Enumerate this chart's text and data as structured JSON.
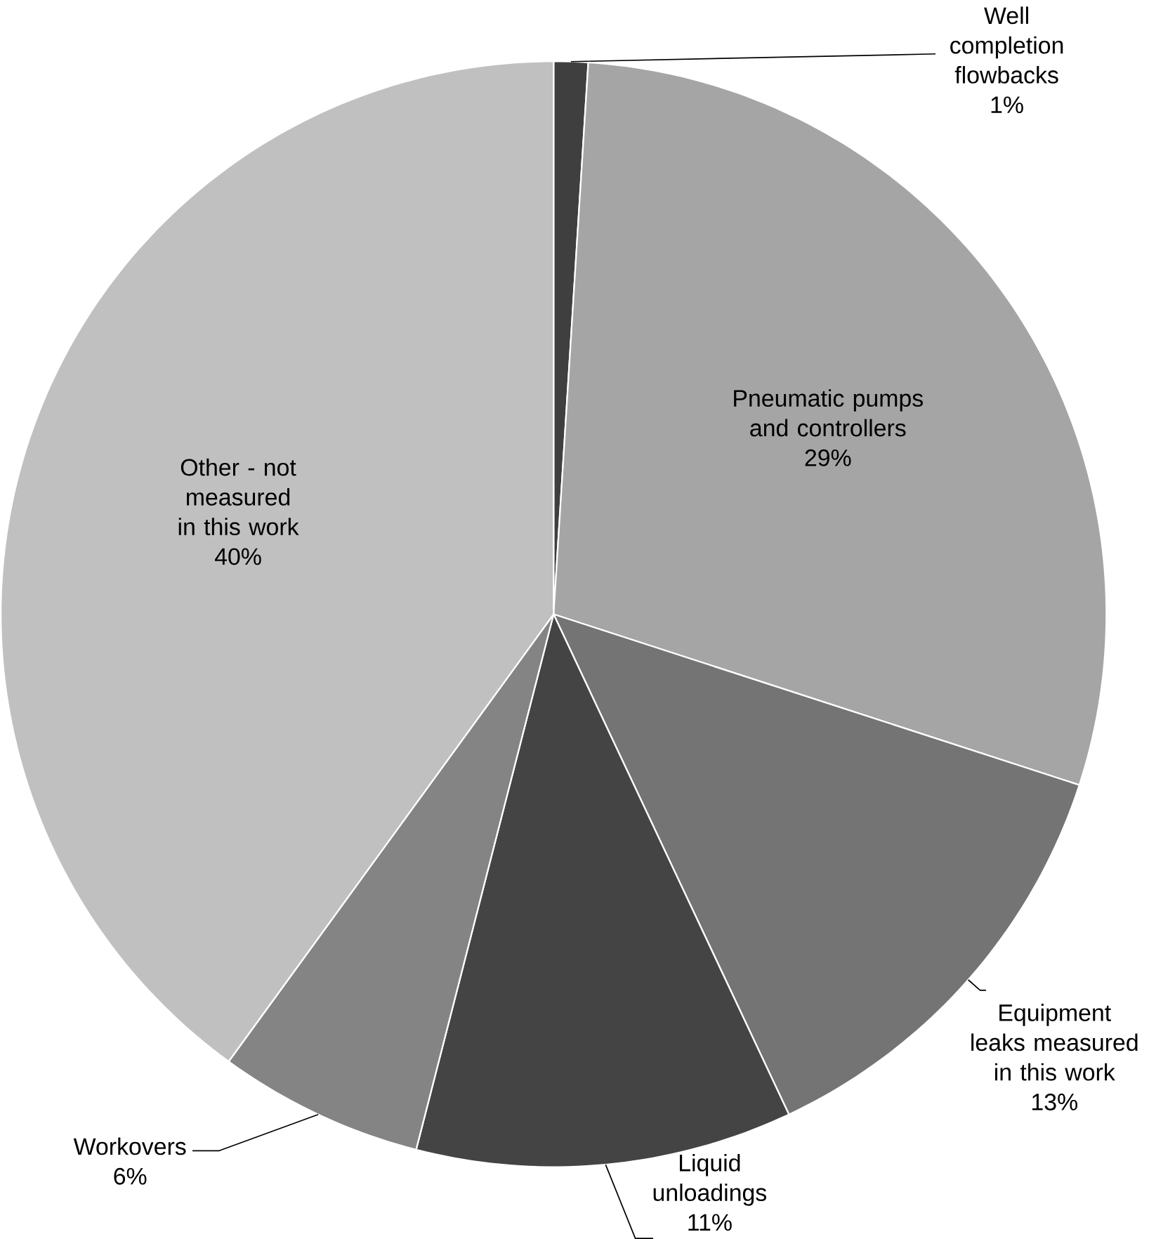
{
  "chart_data": {
    "type": "pie",
    "categories": [
      "Well completion flowbacks",
      "Pneumatic pumps and controllers",
      "Equipment leaks measured in this work",
      "Liquid unloadings",
      "Workovers",
      "Other - not measured in this work"
    ],
    "values": [
      1,
      29,
      13,
      11,
      6,
      40
    ],
    "value_labels": [
      "1%",
      "29%",
      "13%",
      "11%",
      "6%",
      "40%"
    ],
    "colors": [
      "#3f3f3f",
      "#a5a5a5",
      "#747474",
      "#444444",
      "#848484",
      "#c0c0c0"
    ]
  }
}
